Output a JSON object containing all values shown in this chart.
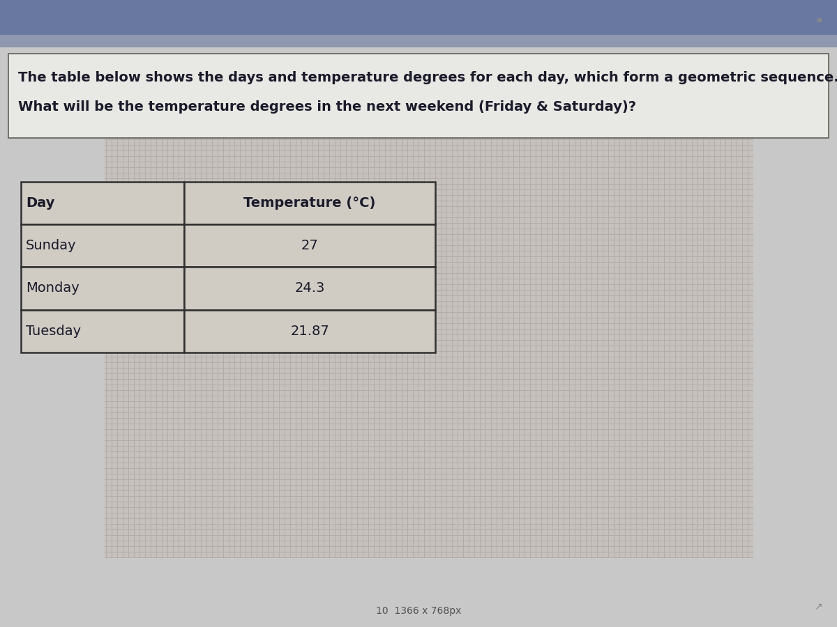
{
  "title_line1": "The table below shows the days and temperature degrees for each day, which form a geometric sequence.",
  "title_line2": "What will be the temperature degrees in the next weekend (Friday & Saturday)?",
  "col_headers": [
    "Day",
    "Temperature (°C)"
  ],
  "rows": [
    [
      "Sunday",
      "27"
    ],
    [
      "Monday",
      "24.3"
    ],
    [
      "Tuesday",
      "21.87"
    ]
  ],
  "bg_color": "#c8c8c8",
  "grid_color_light": "#d8d4cc",
  "grid_color_dark": "#b8b4ac",
  "top_bar_color": "#8090a8",
  "top_bar_color2": "#a0aab8",
  "title_box_color": "#e4e4e0",
  "title_box_edge": "#888880",
  "table_cell_color": "#d0ccc4",
  "table_edge_color": "#303030",
  "text_color": "#1a1a2a",
  "header_text_color": "#1a1a2a",
  "watermark_text": "10  1366 x 768px",
  "title_font_size": 14,
  "table_font_size": 14,
  "watermark_font_size": 10
}
